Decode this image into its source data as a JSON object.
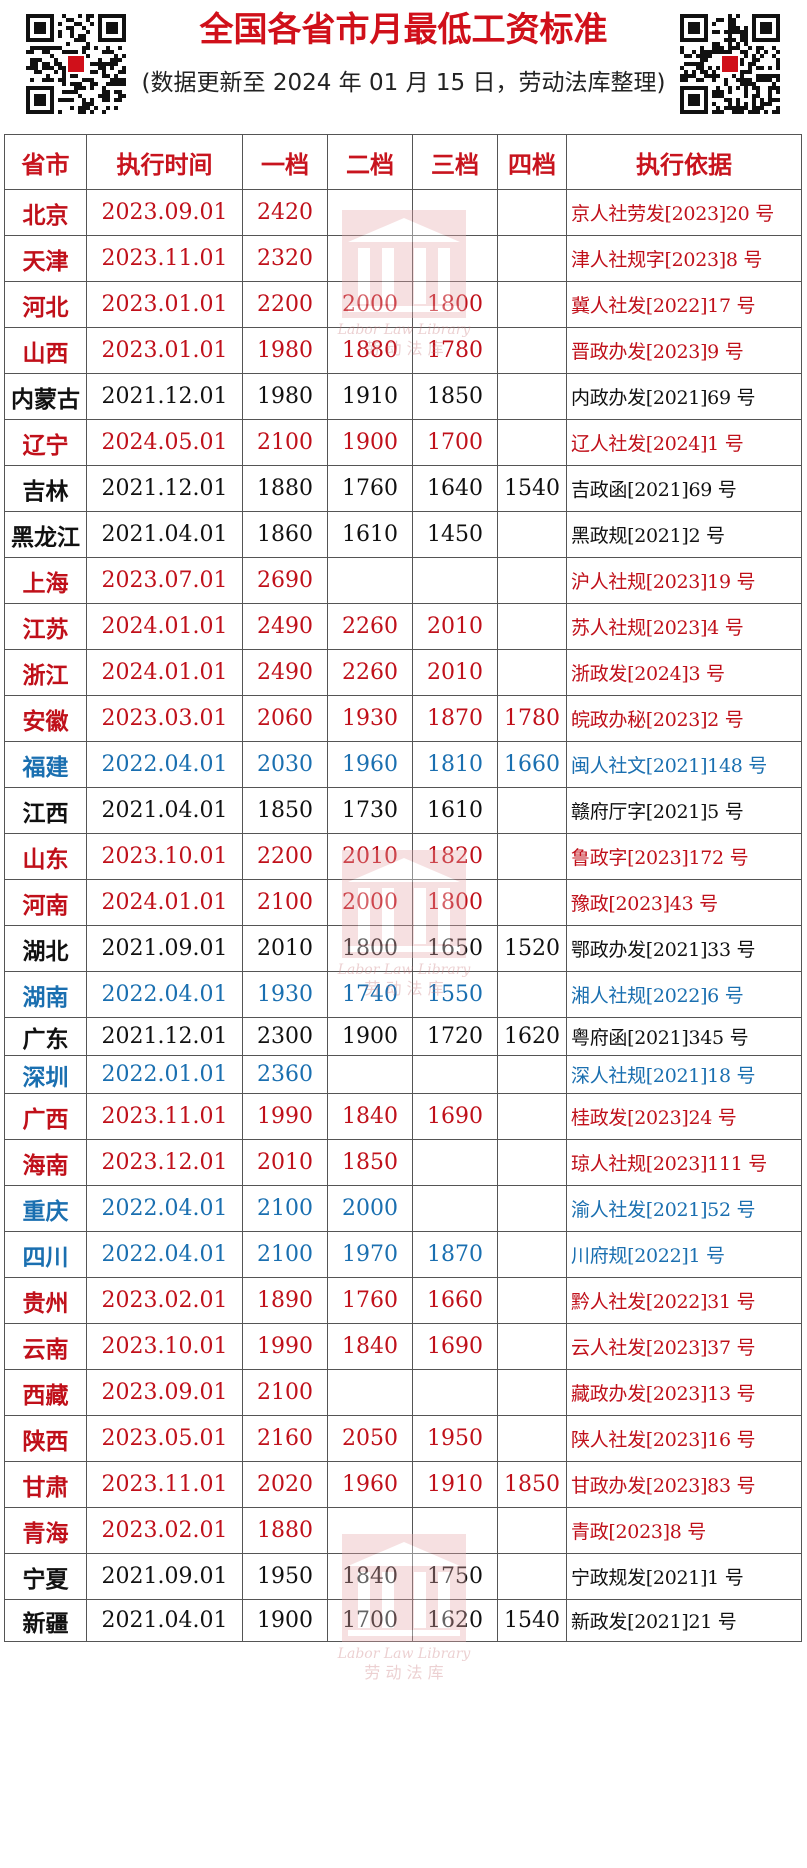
{
  "header": {
    "title": "全国各省市月最低工资标准",
    "subtitle": "(数据更新至 2024 年 01 月 15 日，劳动法库整理)"
  },
  "table": {
    "columns": [
      "省市",
      "执行时间",
      "一档",
      "二档",
      "三档",
      "四档",
      "执行依据"
    ],
    "rows": [
      {
        "color": "red",
        "cells": [
          "北京",
          "2023.09.01",
          "2420",
          "",
          "",
          "",
          "京人社劳发[2023]20 号"
        ]
      },
      {
        "color": "red",
        "cells": [
          "天津",
          "2023.11.01",
          "2320",
          "",
          "",
          "",
          "津人社规字[2023]8 号"
        ]
      },
      {
        "color": "red",
        "cells": [
          "河北",
          "2023.01.01",
          "2200",
          "2000",
          "1800",
          "",
          "冀人社发[2022]17 号"
        ]
      },
      {
        "color": "red",
        "cells": [
          "山西",
          "2023.01.01",
          "1980",
          "1880",
          "1780",
          "",
          "晋政办发[2023]9 号"
        ]
      },
      {
        "color": "black",
        "cells": [
          "内蒙古",
          "2021.12.01",
          "1980",
          "1910",
          "1850",
          "",
          "内政办发[2021]69 号"
        ]
      },
      {
        "color": "red",
        "cells": [
          "辽宁",
          "2024.05.01",
          "2100",
          "1900",
          "1700",
          "",
          "辽人社发[2024]1 号"
        ]
      },
      {
        "color": "black",
        "cells": [
          "吉林",
          "2021.12.01",
          "1880",
          "1760",
          "1640",
          "1540",
          "吉政函[2021]69 号"
        ]
      },
      {
        "color": "black",
        "cells": [
          "黑龙江",
          "2021.04.01",
          "1860",
          "1610",
          "1450",
          "",
          "黑政规[2021]2 号"
        ]
      },
      {
        "color": "red",
        "cells": [
          "上海",
          "2023.07.01",
          "2690",
          "",
          "",
          "",
          "沪人社规[2023]19 号"
        ]
      },
      {
        "color": "red",
        "cells": [
          "江苏",
          "2024.01.01",
          "2490",
          "2260",
          "2010",
          "",
          "苏人社规[2023]4 号"
        ]
      },
      {
        "color": "red",
        "cells": [
          "浙江",
          "2024.01.01",
          "2490",
          "2260",
          "2010",
          "",
          "浙政发[2024]3 号"
        ]
      },
      {
        "color": "red",
        "cells": [
          "安徽",
          "2023.03.01",
          "2060",
          "1930",
          "1870",
          "1780",
          "皖政办秘[2023]2 号"
        ]
      },
      {
        "color": "blue",
        "cells": [
          "福建",
          "2022.04.01",
          "2030",
          "1960",
          "1810",
          "1660",
          "闽人社文[2021]148 号"
        ]
      },
      {
        "color": "black",
        "cells": [
          "江西",
          "2021.04.01",
          "1850",
          "1730",
          "1610",
          "",
          "赣府厅字[2021]5 号"
        ]
      },
      {
        "color": "red",
        "cells": [
          "山东",
          "2023.10.01",
          "2200",
          "2010",
          "1820",
          "",
          "鲁政字[2023]172 号"
        ]
      },
      {
        "color": "red",
        "cells": [
          "河南",
          "2024.01.01",
          "2100",
          "2000",
          "1800",
          "",
          "豫政[2023]43 号"
        ]
      },
      {
        "color": "black",
        "cells": [
          "湖北",
          "2021.09.01",
          "2010",
          "1800",
          "1650",
          "1520",
          "鄂政办发[2021]33 号"
        ]
      },
      {
        "color": "blue",
        "cells": [
          "湖南",
          "2022.04.01",
          "1930",
          "1740",
          "1550",
          "",
          "湘人社规[2022]6 号"
        ]
      },
      {
        "color": "black",
        "cells": [
          "广东",
          "2021.12.01",
          "2300",
          "1900",
          "1720",
          "1620",
          "粤府函[2021]345 号"
        ]
      },
      {
        "color": "blue",
        "cells": [
          "深圳",
          "2022.01.01",
          "2360",
          "",
          "",
          "",
          "深人社规[2021]18 号"
        ]
      },
      {
        "color": "red",
        "cells": [
          "广西",
          "2023.11.01",
          "1990",
          "1840",
          "1690",
          "",
          "桂政发[2023]24 号"
        ]
      },
      {
        "color": "red",
        "cells": [
          "海南",
          "2023.12.01",
          "2010",
          "1850",
          "",
          "",
          "琼人社规[2023]111 号"
        ]
      },
      {
        "color": "blue",
        "cells": [
          "重庆",
          "2022.04.01",
          "2100",
          "2000",
          "",
          "",
          "渝人社发[2021]52 号"
        ]
      },
      {
        "color": "blue",
        "cells": [
          "四川",
          "2022.04.01",
          "2100",
          "1970",
          "1870",
          "",
          "川府规[2022]1 号"
        ]
      },
      {
        "color": "red",
        "cells": [
          "贵州",
          "2023.02.01",
          "1890",
          "1760",
          "1660",
          "",
          "黔人社发[2022]31 号"
        ]
      },
      {
        "color": "red",
        "cells": [
          "云南",
          "2023.10.01",
          "1990",
          "1840",
          "1690",
          "",
          "云人社发[2023]37 号"
        ]
      },
      {
        "color": "red",
        "cells": [
          "西藏",
          "2023.09.01",
          "2100",
          "",
          "",
          "",
          "藏政办发[2023]13 号"
        ]
      },
      {
        "color": "red",
        "cells": [
          "陕西",
          "2023.05.01",
          "2160",
          "2050",
          "1950",
          "",
          "陕人社发[2023]16 号"
        ]
      },
      {
        "color": "red",
        "cells": [
          "甘肃",
          "2023.11.01",
          "2020",
          "1960",
          "1910",
          "1850",
          "甘政办发[2023]83 号"
        ]
      },
      {
        "color": "red",
        "cells": [
          "青海",
          "2023.02.01",
          "1880",
          "",
          "",
          "",
          "青政[2023]8 号"
        ]
      },
      {
        "color": "black",
        "cells": [
          "宁夏",
          "2021.09.01",
          "1950",
          "1840",
          "1750",
          "",
          "宁政规发[2021]1 号"
        ]
      },
      {
        "color": "black",
        "cells": [
          "新疆",
          "2021.04.01",
          "1900",
          "1700",
          "1620",
          "1540",
          "新政发[2021]21 号"
        ]
      }
    ]
  },
  "watermark": {
    "line1": "Labor Law Library",
    "line2": "劳 动 法 库"
  },
  "colors": {
    "red": "#c0101a",
    "blue": "#1a6fb0",
    "black": "#111111",
    "title": "#d0101a"
  },
  "icons": [
    "qr-code-icon",
    "library-logo-icon"
  ]
}
